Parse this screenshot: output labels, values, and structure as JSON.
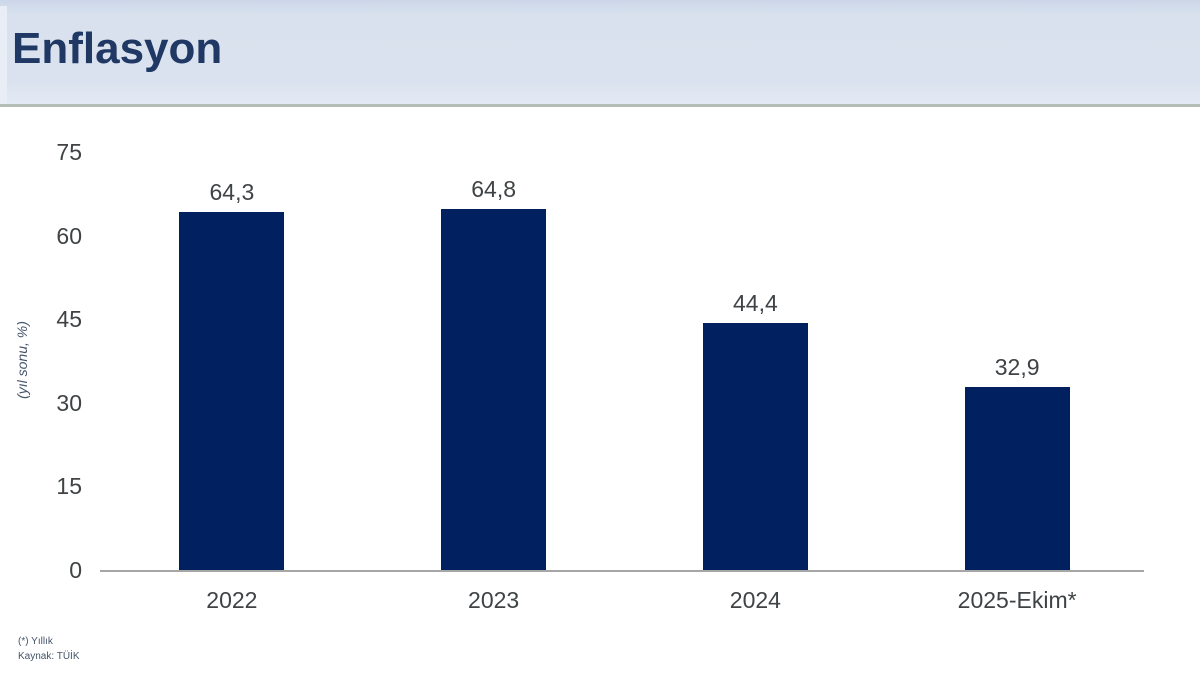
{
  "header": {
    "title": "Enflasyon"
  },
  "chart_data": {
    "type": "bar",
    "title": "Enflasyon",
    "categories": [
      "2022",
      "2023",
      "2024",
      "2025-Ekim*"
    ],
    "values": [
      64.3,
      64.8,
      44.4,
      32.9
    ],
    "value_labels": [
      "64,3",
      "64,8",
      "44,4",
      "32,9"
    ],
    "xlabel": "",
    "ylabel": "(yıl sonu, %)",
    "ylim": [
      0,
      75
    ],
    "yticks": [
      0,
      15,
      30,
      45,
      60,
      75
    ],
    "grid": false,
    "legend": "none",
    "bar_color": "#002060",
    "tick_label_color": "#3f4345",
    "value_label_color": "#3f4345"
  },
  "footer": {
    "note1": "(*) Yıllık",
    "note2": "Kaynak: TÜİK"
  },
  "colors": {
    "header_bg": "#d9e1ee",
    "title_text": "#1f3864",
    "axis_line": "#a6a6a6"
  }
}
